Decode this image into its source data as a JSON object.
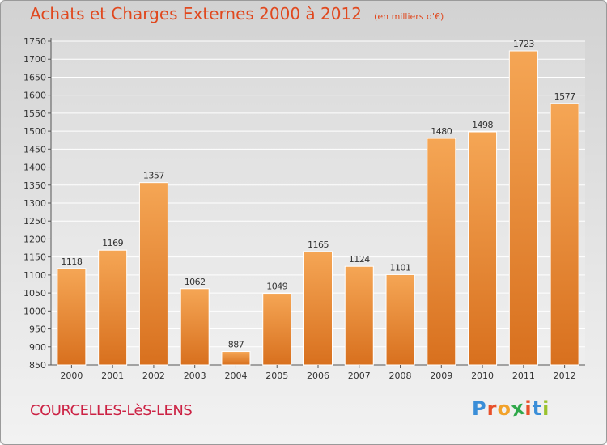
{
  "title": "Achats et Charges Externes 2000 à 2012",
  "unit": "(en milliers d'€)",
  "commune": "COURCELLES-LèS-LENS",
  "brand": {
    "letters": [
      "P",
      "r",
      "o",
      "x",
      "i",
      "t",
      "i"
    ],
    "colors": [
      "#3a8ed8",
      "#e8502a",
      "#f2a22a",
      "#2fa84a",
      "#e8502a",
      "#3a8ed8",
      "#9ac22e"
    ]
  },
  "colors": {
    "bar_light": "#f5a655",
    "bar_dark": "#d8701e",
    "text": "#333333"
  },
  "chart_data": {
    "type": "bar",
    "title": "Achats et Charges Externes 2000 à 2012",
    "categories": [
      "2000",
      "2001",
      "2002",
      "2003",
      "2004",
      "2005",
      "2006",
      "2007",
      "2008",
      "2009",
      "2010",
      "2011",
      "2012"
    ],
    "values": [
      1118,
      1169,
      1357,
      1062,
      887,
      1049,
      1165,
      1124,
      1101,
      1480,
      1498,
      1723,
      1577
    ],
    "ylim": [
      850,
      1750
    ],
    "yticks": [
      850,
      900,
      950,
      1000,
      1050,
      1100,
      1150,
      1200,
      1250,
      1300,
      1350,
      1400,
      1450,
      1500,
      1550,
      1600,
      1650,
      1700,
      1750
    ],
    "grid": true,
    "xlabel": "",
    "ylabel": ""
  }
}
